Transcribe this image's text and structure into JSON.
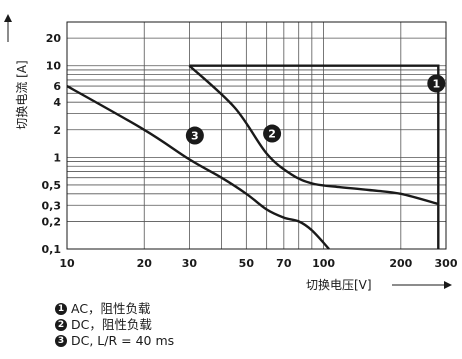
{
  "chart_data": {
    "type": "line",
    "x_scale": "log",
    "y_scale": "log",
    "xlim": [
      10,
      300
    ],
    "ylim": [
      0.1,
      30
    ],
    "xlabel": "切换电压[V]",
    "ylabel": "切换电流 [A]",
    "x_ticks": [
      {
        "value": 10,
        "label": "10"
      },
      {
        "value": 20,
        "label": "20"
      },
      {
        "value": 30,
        "label": "30"
      },
      {
        "value": 50,
        "label": "50"
      },
      {
        "value": 70,
        "label": "70"
      },
      {
        "value": 100,
        "label": "100"
      },
      {
        "value": 200,
        "label": "200"
      },
      {
        "value": 300,
        "label": "300"
      }
    ],
    "y_ticks": [
      {
        "value": 0.1,
        "label": "0,1"
      },
      {
        "value": 0.2,
        "label": "0,2"
      },
      {
        "value": 0.3,
        "label": "0,3"
      },
      {
        "value": 0.5,
        "label": "0,5"
      },
      {
        "value": 1,
        "label": "1"
      },
      {
        "value": 2,
        "label": "2"
      },
      {
        "value": 4,
        "label": "4"
      },
      {
        "value": 6,
        "label": "6"
      },
      {
        "value": 10,
        "label": "10"
      },
      {
        "value": 20,
        "label": "20"
      }
    ],
    "x_grid": [
      20,
      30,
      40,
      50,
      60,
      70,
      80,
      90,
      100,
      200,
      300
    ],
    "y_grid": [
      0.2,
      0.3,
      0.4,
      0.5,
      0.6,
      0.7,
      0.8,
      0.9,
      1,
      2,
      3,
      4,
      5,
      6,
      7,
      8,
      9,
      10,
      20
    ],
    "grid": true,
    "series": [
      {
        "marker": "1",
        "x": [
          30,
          280,
          280
        ],
        "y": [
          10,
          10,
          0.1
        ]
      },
      {
        "marker": "2",
        "x": [
          30,
          45,
          60,
          75,
          90,
          110,
          150,
          200,
          280
        ],
        "y": [
          10,
          3.5,
          1.1,
          0.65,
          0.52,
          0.48,
          0.44,
          0.4,
          0.31
        ]
      },
      {
        "marker": "3",
        "x": [
          10,
          20,
          30,
          40,
          50,
          60,
          70,
          80,
          90,
          105
        ],
        "y": [
          6,
          2,
          0.95,
          0.6,
          0.4,
          0.27,
          0.22,
          0.2,
          0.16,
          0.1
        ]
      }
    ],
    "markers": [
      {
        "label": "1",
        "x": 275,
        "y": 6.4
      },
      {
        "label": "2",
        "x": 63,
        "y": 1.82
      },
      {
        "label": "3",
        "x": 31.5,
        "y": 1.73
      }
    ]
  },
  "legend": [
    {
      "marker": "1",
      "text": "AC，阻性负载"
    },
    {
      "marker": "2",
      "text": "DC，阻性负载"
    },
    {
      "marker": "3",
      "text": "DC, L/R = 40 ms"
    }
  ]
}
